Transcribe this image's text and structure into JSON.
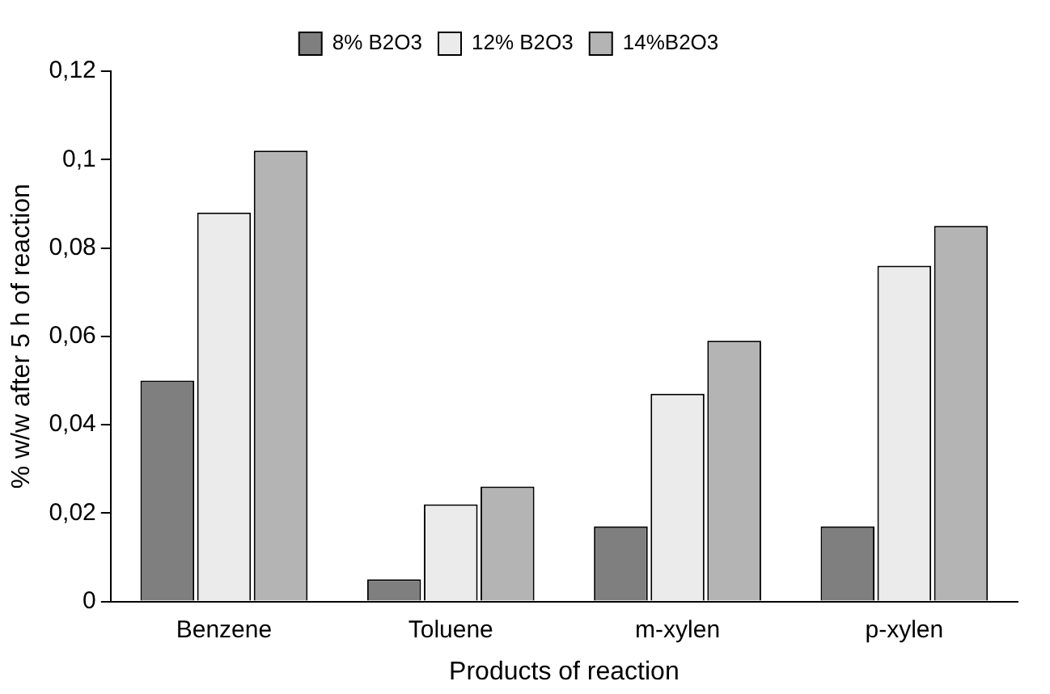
{
  "chart_data": {
    "type": "bar",
    "xlabel": "Products of reaction",
    "ylabel": "% w/w after 5 h of reaction",
    "categories": [
      "Benzene",
      "Toluene",
      "m-xylen",
      "p-xylen"
    ],
    "series": [
      {
        "name": "8% B2O3",
        "color": "#7f7f7f",
        "values": [
          0.05,
          0.005,
          0.017,
          0.017
        ]
      },
      {
        "name": "12% B2O3",
        "color": "#ebebeb",
        "values": [
          0.088,
          0.022,
          0.047,
          0.076
        ]
      },
      {
        "name": "14%B2O3",
        "color": "#b4b4b4",
        "values": [
          0.102,
          0.026,
          0.059,
          0.085
        ]
      }
    ],
    "ylim": [
      0,
      0.12
    ],
    "yticks": [
      0,
      {
        "value": 0.02,
        "label": "0,02"
      },
      {
        "value": 0.04,
        "label": "0,04"
      },
      {
        "value": 0.06,
        "label": "0,06"
      },
      {
        "value": 0.08,
        "label": "0,08"
      },
      {
        "value": 0.1,
        "label": "0,1"
      },
      {
        "value": 0.12,
        "label": "0,12"
      }
    ],
    "grid": false,
    "legend": "top"
  }
}
